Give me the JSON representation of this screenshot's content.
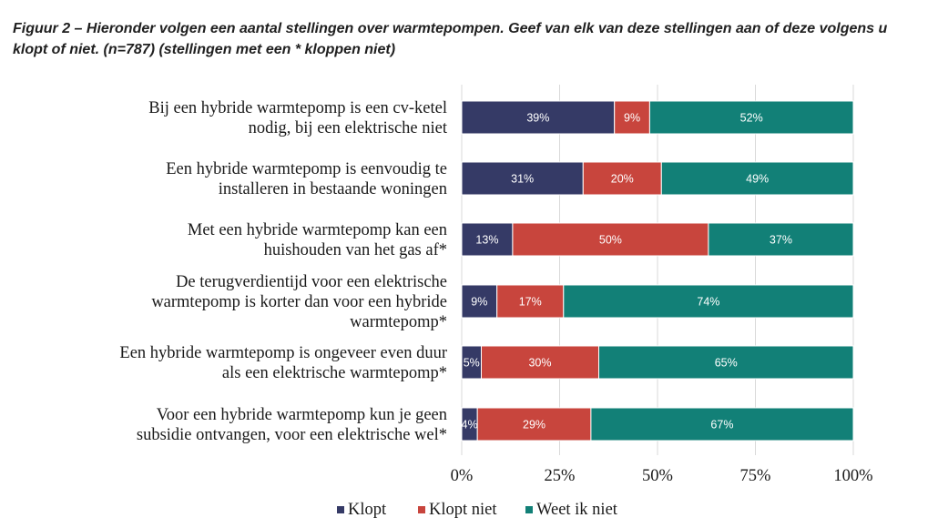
{
  "title": "Figuur 2 – Hieronder volgen een aantal stellingen over warmtepompen. Geef van elk van deze stellingen aan of deze volgens u klopt of niet. (n=787) (stellingen met een * kloppen niet)",
  "chart_data": {
    "type": "bar",
    "orientation": "horizontal",
    "stacked": "100%",
    "title": "Figuur 2 – Hieronder volgen een aantal stellingen over warmtepompen. Geef van elk van deze stellingen aan of deze volgens u klopt of niet. (n=787) (stellingen met een * kloppen niet)",
    "categories": [
      [
        "Bij een hybride warmtepomp is een cv-ketel",
        "nodig, bij een elektrische niet"
      ],
      [
        "Een hybride warmtepomp is eenvoudig te",
        "installeren in bestaande woningen"
      ],
      [
        "Met een hybride warmtepomp kan een",
        "huishouden van het gas af*"
      ],
      [
        "De terugverdientijd voor een elektrische",
        "warmtepomp is korter dan voor een hybride",
        "warmtepomp*"
      ],
      [
        "Een hybride warmtepomp is ongeveer even duur",
        "als een elektrische warmtepomp*"
      ],
      [
        "Voor een hybride warmtepomp kun je geen",
        "subsidie ontvangen, voor een elektrische wel*"
      ]
    ],
    "series": [
      {
        "name": "Klopt",
        "color": "#353a66",
        "values": [
          39,
          31,
          13,
          9,
          5,
          4
        ],
        "labels": [
          "39%",
          "31%",
          "13%",
          "9%",
          "5%",
          "4%"
        ]
      },
      {
        "name": "Klopt niet",
        "color": "#c8453d",
        "values": [
          9,
          20,
          50,
          17,
          30,
          29
        ],
        "labels": [
          "9%",
          "20%",
          "50%",
          "17%",
          "30%",
          "29%"
        ]
      },
      {
        "name": "Weet ik niet",
        "color": "#128077",
        "values": [
          52,
          49,
          37,
          74,
          65,
          67
        ],
        "labels": [
          "52%",
          "49%",
          "37%",
          "74%",
          "65%",
          "67%"
        ]
      }
    ],
    "xlim": [
      0,
      100
    ],
    "xticks": [
      0,
      25,
      50,
      75,
      100
    ],
    "xtick_labels": [
      "0%",
      "25%",
      "50%",
      "75%",
      "100%"
    ],
    "gridlines": true,
    "legend_position": "bottom"
  }
}
